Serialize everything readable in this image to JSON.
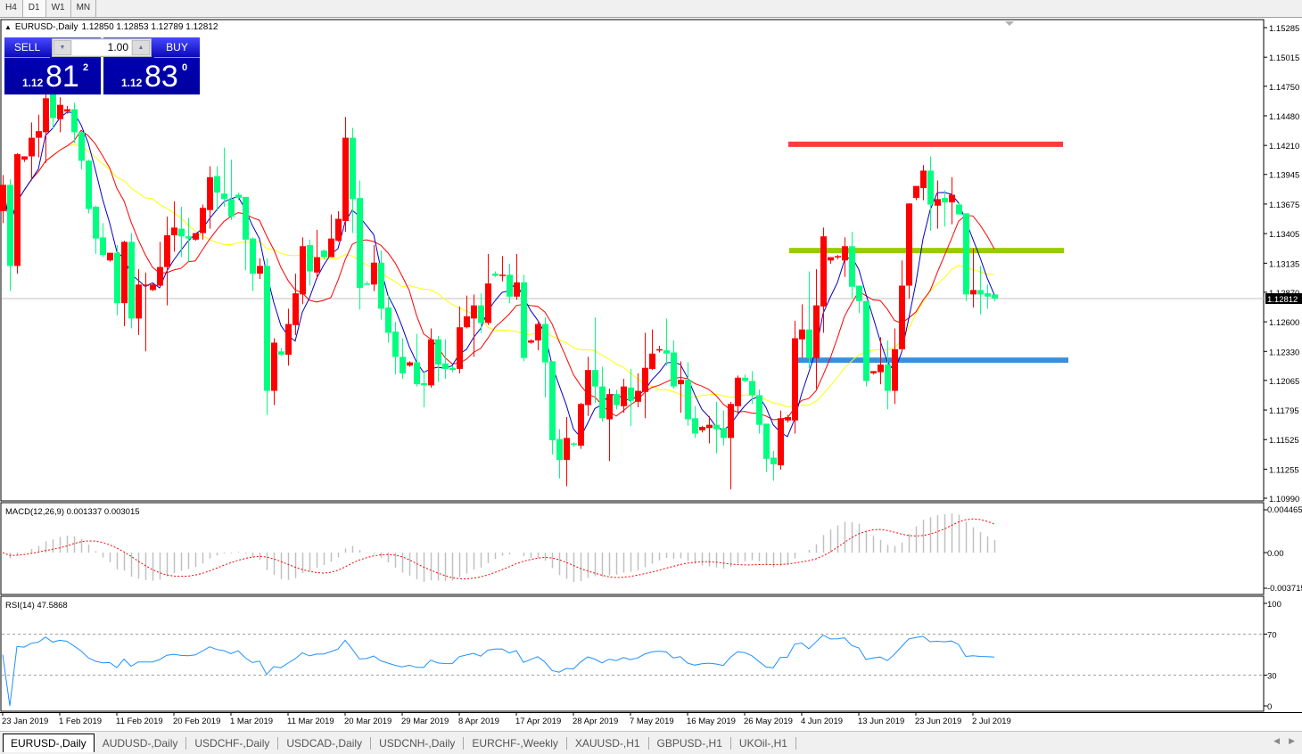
{
  "toolbar": {
    "timeframes": [
      "H4",
      "D1",
      "W1",
      "MN"
    ],
    "active": "D1"
  },
  "header": {
    "symbol": "EURUSD-,Daily",
    "ohlc_text": "1.12850 1.12853 1.12789 1.12812"
  },
  "trade_panel": {
    "sell_label": "SELL",
    "buy_label": "BUY",
    "lot": "1.00",
    "sell": {
      "prefix": "1.12",
      "big": "81",
      "sup": "2"
    },
    "buy": {
      "prefix": "1.12",
      "big": "83",
      "sup": "0"
    }
  },
  "tabs": [
    "EURUSD-,Daily",
    "AUDUSD-,Daily",
    "USDCHF-,Daily",
    "USDCAD-,Daily",
    "USDCNH-,Daily",
    "EURCHF-,Weekly",
    "XAUUSD-,H1",
    "GBPUSD-,H1",
    "UKOil-,H1"
  ],
  "colors": {
    "bull": "#ff0000",
    "bear": "#00ff80",
    "ma_fast": "#0000c8",
    "ma_mid": "#ff0000",
    "ma_slow": "#ffff00",
    "rsi": "#1e90ff",
    "macd_hist": "#c0c0c0",
    "macd_signal": "#ff0000"
  },
  "chart_data": {
    "type": "candlestick",
    "symbol": "EURUSD-",
    "timeframe": "Daily",
    "ylim": [
      1.1099,
      1.15285
    ],
    "y_ticks": [
      "1.15285",
      "1.15015",
      "1.14750",
      "1.14480",
      "1.14210",
      "1.13945",
      "1.13675",
      "1.13405",
      "1.13135",
      "1.12870",
      "1.12600",
      "1.12330",
      "1.12065",
      "1.11795",
      "1.11525",
      "1.11255",
      "1.10990"
    ],
    "current_price": "1.12812",
    "x_tick_labels": [
      "23 Jan 2019",
      "1 Feb 2019",
      "11 Feb 2019",
      "20 Feb 2019",
      "1 Mar 2019",
      "11 Mar 2019",
      "20 Mar 2019",
      "29 Mar 2019",
      "8 Apr 2019",
      "17 Apr 2019",
      "28 Apr 2019",
      "7 May 2019",
      "16 May 2019",
      "26 May 2019",
      "4 Jun 2019",
      "13 Jun 2019",
      "23 Jun 2019",
      "2 Jul 2019"
    ],
    "horizontal_lines": [
      {
        "price": 1.1422,
        "color": "#ff3b3b"
      },
      {
        "price": 1.1325,
        "color": "#99cc00"
      },
      {
        "price": 1.1225,
        "color": "#3a8fdc"
      }
    ],
    "ohlc": [
      [
        1.1361,
        1.1394,
        1.135,
        1.1385
      ],
      [
        1.1385,
        1.139,
        1.1288,
        1.1311
      ],
      [
        1.1311,
        1.1414,
        1.1304,
        1.1413
      ],
      [
        1.1408,
        1.1411,
        1.1406,
        1.1411
      ],
      [
        1.1411,
        1.1442,
        1.1389,
        1.1428
      ],
      [
        1.1428,
        1.1449,
        1.141,
        1.1434
      ],
      [
        1.1433,
        1.1472,
        1.1405,
        1.1464
      ],
      [
        1.1468,
        1.1475,
        1.1436,
        1.1446
      ],
      [
        1.1445,
        1.1465,
        1.1433,
        1.1458
      ],
      [
        1.1452,
        1.1457,
        1.145,
        1.1454
      ],
      [
        1.1454,
        1.146,
        1.1423,
        1.1433
      ],
      [
        1.1433,
        1.1434,
        1.1399,
        1.1407
      ],
      [
        1.1407,
        1.1408,
        1.1359,
        1.1363
      ],
      [
        1.1365,
        1.1366,
        1.1322,
        1.1336
      ],
      [
        1.1337,
        1.135,
        1.1319,
        1.1321
      ],
      [
        1.1316,
        1.1323,
        1.1315,
        1.1323
      ],
      [
        1.1323,
        1.133,
        1.1266,
        1.1277
      ],
      [
        1.1277,
        1.1334,
        1.1256,
        1.1333
      ],
      [
        1.1333,
        1.1341,
        1.1254,
        1.1263
      ],
      [
        1.1263,
        1.1308,
        1.1248,
        1.1294
      ],
      [
        1.1293,
        1.1305,
        1.1233,
        1.1294
      ],
      [
        1.1289,
        1.1295,
        1.1288,
        1.1294
      ],
      [
        1.1293,
        1.1333,
        1.1292,
        1.131
      ],
      [
        1.131,
        1.1356,
        1.1275,
        1.1339
      ],
      [
        1.1339,
        1.137,
        1.1324,
        1.1346
      ],
      [
        1.1345,
        1.1365,
        1.1319,
        1.1338
      ],
      [
        1.1338,
        1.1355,
        1.1315,
        1.1336
      ],
      [
        1.1335,
        1.1341,
        1.1334,
        1.1341
      ],
      [
        1.1341,
        1.1367,
        1.1335,
        1.1364
      ],
      [
        1.1362,
        1.1402,
        1.1345,
        1.1392
      ],
      [
        1.1393,
        1.1402,
        1.1361,
        1.1378
      ],
      [
        1.1377,
        1.1419,
        1.1365,
        1.1372
      ],
      [
        1.1372,
        1.1408,
        1.1353,
        1.1356
      ],
      [
        1.1376,
        1.1378,
        1.1371,
        1.1373
      ],
      [
        1.1374,
        1.1374,
        1.1307,
        1.1335
      ],
      [
        1.1336,
        1.1337,
        1.1288,
        1.1304
      ],
      [
        1.1304,
        1.1318,
        1.1299,
        1.1311
      ],
      [
        1.1311,
        1.1318,
        1.1175,
        1.1197
      ],
      [
        1.1197,
        1.1245,
        1.1184,
        1.1241
      ],
      [
        1.1233,
        1.1236,
        1.1229,
        1.123
      ],
      [
        1.123,
        1.1272,
        1.122,
        1.1258
      ],
      [
        1.1257,
        1.1304,
        1.1248,
        1.1286
      ],
      [
        1.1285,
        1.1337,
        1.1276,
        1.1329
      ],
      [
        1.133,
        1.1335,
        1.1293,
        1.1306
      ],
      [
        1.1305,
        1.1344,
        1.1299,
        1.1319
      ],
      [
        1.1325,
        1.1326,
        1.1317,
        1.1319
      ],
      [
        1.1319,
        1.1358,
        1.1319,
        1.1336
      ],
      [
        1.1334,
        1.1361,
        1.1333,
        1.1354
      ],
      [
        1.1352,
        1.1447,
        1.1342,
        1.1428
      ],
      [
        1.1428,
        1.1437,
        1.1341,
        1.1372
      ],
      [
        1.1373,
        1.1389,
        1.1271,
        1.1291
      ],
      [
        1.1295,
        1.1297,
        1.1294,
        1.1294
      ],
      [
        1.1294,
        1.133,
        1.1288,
        1.1314
      ],
      [
        1.1314,
        1.1325,
        1.1262,
        1.1272
      ],
      [
        1.1273,
        1.1284,
        1.1241,
        1.125
      ],
      [
        1.1251,
        1.126,
        1.1212,
        1.1228
      ],
      [
        1.1228,
        1.1245,
        1.1208,
        1.1213
      ],
      [
        1.122,
        1.1224,
        1.1219,
        1.1223
      ],
      [
        1.1223,
        1.1249,
        1.1201,
        1.1203
      ],
      [
        1.1204,
        1.1215,
        1.1182,
        1.1202
      ],
      [
        1.1202,
        1.1254,
        1.12,
        1.1244
      ],
      [
        1.1244,
        1.1247,
        1.1205,
        1.1221
      ],
      [
        1.1222,
        1.1244,
        1.1208,
        1.1217
      ],
      [
        1.1218,
        1.122,
        1.1214,
        1.1216
      ],
      [
        1.1217,
        1.1274,
        1.1213,
        1.1255
      ],
      [
        1.1255,
        1.1284,
        1.1254,
        1.1265
      ],
      [
        1.1263,
        1.1285,
        1.1228,
        1.1275
      ],
      [
        1.1275,
        1.1286,
        1.125,
        1.1259
      ],
      [
        1.1259,
        1.1322,
        1.1257,
        1.1295
      ],
      [
        1.1304,
        1.1306,
        1.1301,
        1.1302
      ],
      [
        1.1302,
        1.132,
        1.1297,
        1.1303
      ],
      [
        1.1303,
        1.1313,
        1.1277,
        1.1283
      ],
      [
        1.1283,
        1.1322,
        1.128,
        1.1296
      ],
      [
        1.1296,
        1.1303,
        1.1224,
        1.1227
      ],
      [
        1.1241,
        1.1244,
        1.124,
        1.1243
      ],
      [
        1.1243,
        1.1261,
        1.1234,
        1.1258
      ],
      [
        1.1258,
        1.1264,
        1.1191,
        1.1223
      ],
      [
        1.1224,
        1.1224,
        1.1139,
        1.1152
      ],
      [
        1.1153,
        1.1162,
        1.1117,
        1.1134
      ],
      [
        1.1134,
        1.1173,
        1.111,
        1.1154
      ],
      [
        1.1149,
        1.115,
        1.1146,
        1.1148
      ],
      [
        1.1147,
        1.1186,
        1.1144,
        1.1185
      ],
      [
        1.1184,
        1.1228,
        1.1174,
        1.1216
      ],
      [
        1.1216,
        1.1264,
        1.1186,
        1.1201
      ],
      [
        1.1201,
        1.1219,
        1.1169,
        1.1172
      ],
      [
        1.1171,
        1.1199,
        1.1133,
        1.1194
      ],
      [
        1.1194,
        1.1198,
        1.118,
        1.1184
      ],
      [
        1.1183,
        1.1208,
        1.1177,
        1.1201
      ],
      [
        1.12,
        1.1217,
        1.1165,
        1.1188
      ],
      [
        1.1187,
        1.1213,
        1.1182,
        1.1197
      ],
      [
        1.1196,
        1.125,
        1.1172,
        1.1218
      ],
      [
        1.1217,
        1.1253,
        1.1216,
        1.1231
      ],
      [
        1.1234,
        1.1238,
        1.1232,
        1.1235
      ],
      [
        1.1234,
        1.1263,
        1.122,
        1.1231
      ],
      [
        1.1232,
        1.1243,
        1.1199,
        1.1201
      ],
      [
        1.1203,
        1.1224,
        1.1177,
        1.1207
      ],
      [
        1.1207,
        1.1223,
        1.1165,
        1.1171
      ],
      [
        1.1172,
        1.1183,
        1.1154,
        1.1158
      ],
      [
        1.1161,
        1.1165,
        1.1159,
        1.1164
      ],
      [
        1.1163,
        1.1174,
        1.1149,
        1.1166
      ],
      [
        1.1166,
        1.1187,
        1.114,
        1.1162
      ],
      [
        1.1163,
        1.1179,
        1.1147,
        1.1154
      ],
      [
        1.1154,
        1.1187,
        1.1107,
        1.1185
      ],
      [
        1.1183,
        1.1211,
        1.1176,
        1.1209
      ],
      [
        1.1209,
        1.1212,
        1.1205,
        1.1206
      ],
      [
        1.1206,
        1.1215,
        1.1185,
        1.1193
      ],
      [
        1.1193,
        1.1198,
        1.1158,
        1.1166
      ],
      [
        1.1167,
        1.1167,
        1.1123,
        1.1135
      ],
      [
        1.1136,
        1.1142,
        1.1115,
        1.113
      ],
      [
        1.1129,
        1.1179,
        1.1125,
        1.1172
      ],
      [
        1.117,
        1.1175,
        1.1168,
        1.1173
      ],
      [
        1.117,
        1.1261,
        1.1158,
        1.1245
      ],
      [
        1.1244,
        1.1276,
        1.1227,
        1.1253
      ],
      [
        1.1253,
        1.1306,
        1.1218,
        1.1227
      ],
      [
        1.1227,
        1.1308,
        1.1199,
        1.1275
      ],
      [
        1.1274,
        1.1346,
        1.125,
        1.1338
      ],
      [
        1.1316,
        1.1319,
        1.1313,
        1.1319
      ],
      [
        1.1319,
        1.1321,
        1.1317,
        1.132
      ],
      [
        1.1316,
        1.1337,
        1.1301,
        1.1329
      ],
      [
        1.1329,
        1.1342,
        1.1281,
        1.1292
      ],
      [
        1.1293,
        1.1293,
        1.1268,
        1.1279
      ],
      [
        1.1279,
        1.1279,
        1.1201,
        1.1206
      ],
      [
        1.1213,
        1.1215,
        1.1212,
        1.1215
      ],
      [
        1.1214,
        1.1246,
        1.1203,
        1.1221
      ],
      [
        1.1221,
        1.1243,
        1.118,
        1.1197
      ],
      [
        1.1197,
        1.1254,
        1.1185,
        1.1235
      ],
      [
        1.1235,
        1.1316,
        1.1233,
        1.1293
      ],
      [
        1.1293,
        1.1368,
        1.1281,
        1.1368
      ],
      [
        1.1373,
        1.1384,
        1.1371,
        1.1384
      ],
      [
        1.1382,
        1.1403,
        1.1371,
        1.1398
      ],
      [
        1.1398,
        1.1411,
        1.1343,
        1.1367
      ],
      [
        1.1366,
        1.1389,
        1.1345,
        1.1372
      ],
      [
        1.1373,
        1.138,
        1.1347,
        1.1369
      ],
      [
        1.1369,
        1.1392,
        1.1349,
        1.1376
      ],
      [
        1.1367,
        1.1369,
        1.1358,
        1.1358
      ],
      [
        1.1359,
        1.1359,
        1.1279,
        1.1285
      ],
      [
        1.1285,
        1.1327,
        1.1273,
        1.1289
      ],
      [
        1.1289,
        1.1311,
        1.1267,
        1.1285
      ],
      [
        1.1286,
        1.1294,
        1.1272,
        1.1283
      ],
      [
        1.1285,
        1.12853,
        1.12789,
        1.12812
      ]
    ],
    "macd": {
      "label": "MACD(12,26,9) 0.001337 0.003015",
      "ylim": [
        -0.003715,
        0.004465
      ],
      "y_ticks": [
        "0.004465",
        "0.00",
        "-0.003715"
      ]
    },
    "rsi": {
      "label": "RSI(14) 47.5868",
      "ylim": [
        0,
        100
      ],
      "levels": [
        70,
        30
      ],
      "y_ticks": [
        "100",
        "70",
        "30",
        "0"
      ]
    }
  }
}
